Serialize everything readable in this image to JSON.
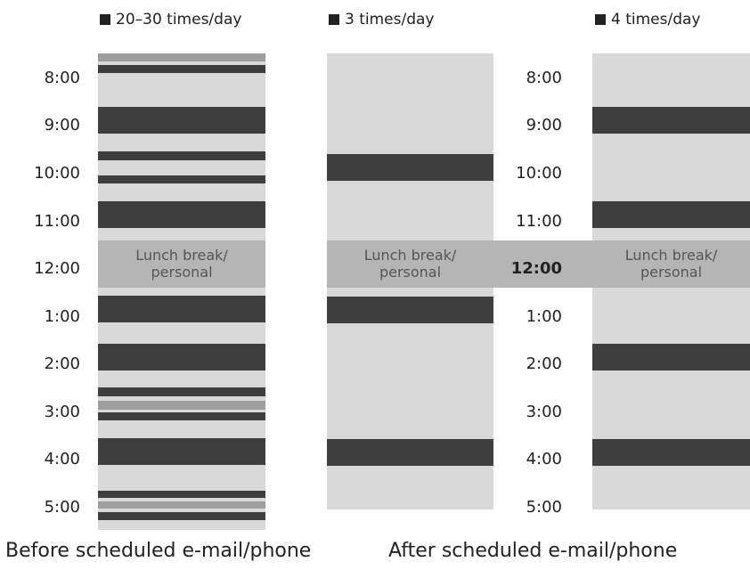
{
  "legend": {
    "before": "20–30 times/day",
    "after_a": "3 times/day",
    "after_b": "4 times/day"
  },
  "times_left": [
    "8:00",
    "9:00",
    "10:00",
    "11:00",
    "12:00",
    "1:00",
    "2:00",
    "3:00",
    "4:00",
    "5:00"
  ],
  "times_right": [
    "8:00",
    "9:00",
    "10:00",
    "11:00",
    "12:00",
    "1:00",
    "2:00",
    "3:00",
    "4:00",
    "5:00"
  ],
  "lunch_label": "Lunch break/\npersonal",
  "captions": {
    "before": "Before scheduled e-mail/phone",
    "after": "After scheduled e-mail/phone"
  },
  "colors": {
    "dark": "#3e3e3e",
    "light": "#d9d9d9",
    "lunch": "#b5b5b5",
    "accent_gray": "#9e9e9e"
  }
}
